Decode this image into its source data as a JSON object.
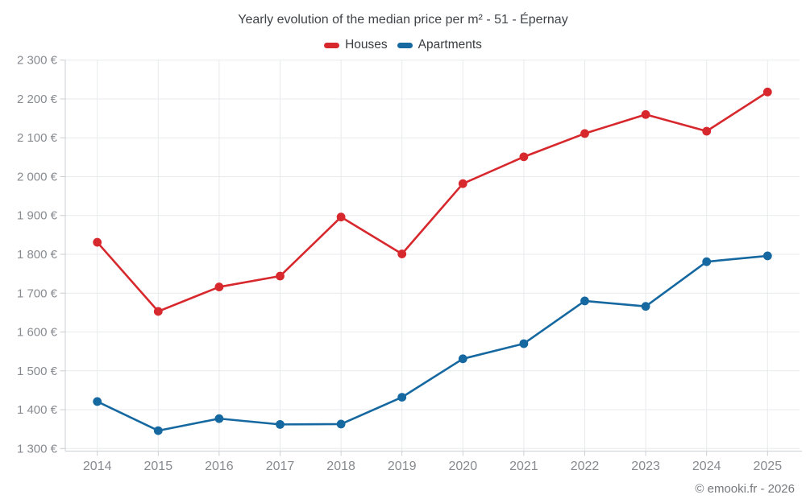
{
  "footer": {
    "credit": "© emooki.fr - 2026"
  },
  "chart_data": {
    "type": "line",
    "title": "Yearly evolution of the median price per m² - 51 - Épernay",
    "categories": [
      "2014",
      "2015",
      "2016",
      "2017",
      "2018",
      "2019",
      "2020",
      "2021",
      "2022",
      "2023",
      "2024",
      "2025"
    ],
    "series": [
      {
        "name": "Houses",
        "color": "#d7282d",
        "values": [
          1831,
          1653,
          1716,
          1744,
          1896,
          1801,
          1982,
          2051,
          2111,
          2160,
          2117,
          2218
        ]
      },
      {
        "name": "Apartments",
        "color": "#1668a0",
        "values": [
          1421,
          1346,
          1377,
          1362,
          1363,
          1432,
          1531,
          1570,
          1680,
          1666,
          1781,
          1796
        ]
      }
    ],
    "ylabel": "",
    "xlabel": "",
    "ylim": [
      1300,
      2300
    ],
    "y_tick_step": 100,
    "y_tick_labels": [
      "1 300 €",
      "1 400 €",
      "1 500 €",
      "1 600 €",
      "1 700 €",
      "1 800 €",
      "1 900 €",
      "2 000 €",
      "2 100 €",
      "2 200 €",
      "2 300 €"
    ],
    "grid": true,
    "legend_position": "top",
    "marker": "circle",
    "currency": "EUR"
  }
}
